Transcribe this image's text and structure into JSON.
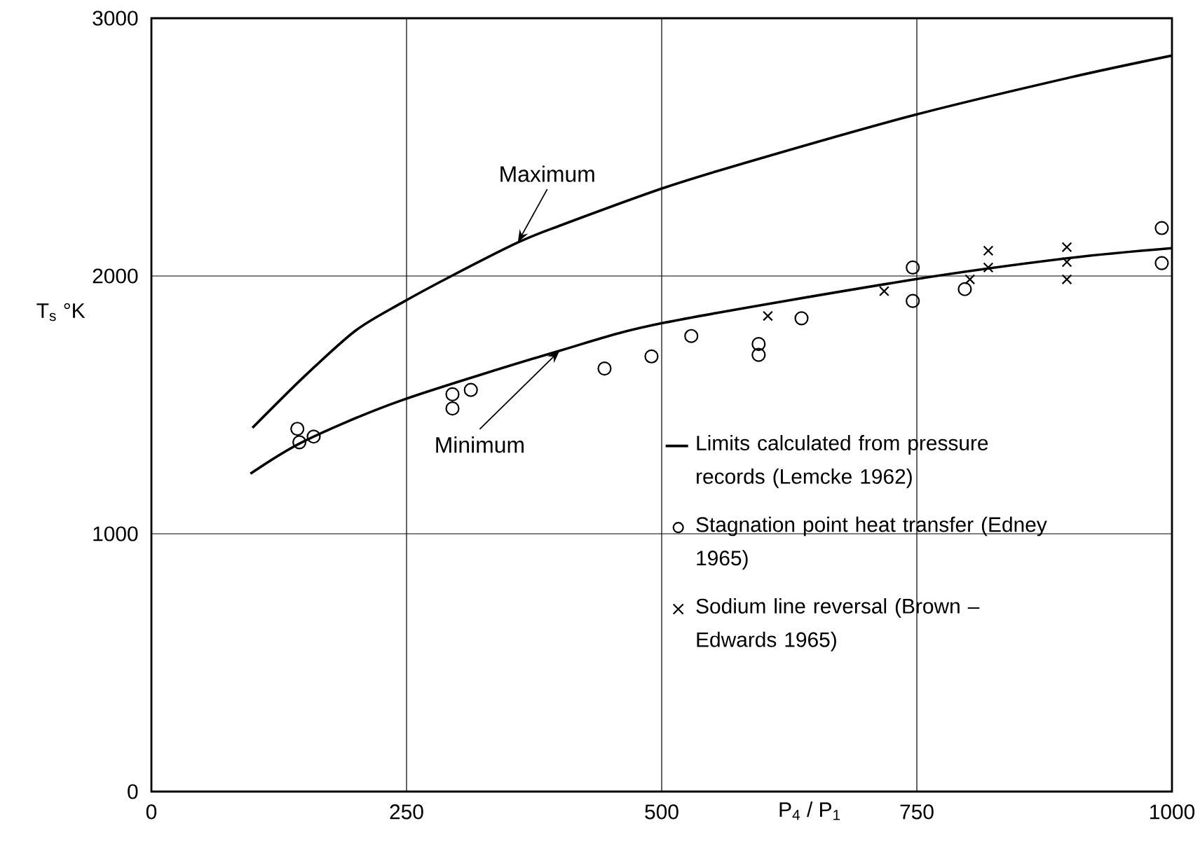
{
  "chart_data": {
    "type": "line",
    "xlabel": "P$_{4}$ / P$_{1}$",
    "ylabel": "T$_{s}$ °K",
    "xlim": [
      0,
      1000
    ],
    "ylim": [
      0,
      3000
    ],
    "xticks": [
      0,
      250,
      500,
      750,
      1000
    ],
    "yticks": [
      0,
      1000,
      2000,
      3000
    ],
    "grid": true,
    "legend": "bottom right",
    "series": [
      {
        "name": "Limits calculated from pressure records (Lemcke 1962)",
        "type": "line",
        "color": "#000000",
        "marker": "none",
        "line_style": "solid",
        "x": [
          99,
          150,
          200,
          244,
          293,
          359,
          400,
          503,
          600,
          748,
          900,
          1000
        ],
        "values": [
          1411,
          1611,
          1788,
          1893,
          1998,
          2130,
          2195,
          2343,
          2460,
          2625,
          2770,
          2855
        ]
      },
      {
        "type": "line",
        "color": "#000000",
        "marker": "none",
        "line_style": "solid",
        "x": [
          97,
          150,
          244,
          400,
          503,
          748,
          900,
          1000
        ],
        "values": [
          1233,
          1360,
          1516,
          1710,
          1819,
          1987,
          2070,
          2108
        ]
      },
      {
        "name": "Stagnation point heat transfer (Edney 1965)",
        "type": "scatter",
        "color": "#000000",
        "marker": "circle",
        "x": [
          143,
          145,
          159,
          295,
          295,
          313,
          444,
          490,
          529,
          595,
          595,
          637,
          746,
          746,
          797,
          990,
          990
        ],
        "values": [
          1407,
          1355,
          1377,
          1541,
          1486,
          1558,
          1641,
          1688,
          1767,
          1736,
          1694,
          1836,
          2033,
          1903,
          1949,
          2186,
          2050
        ]
      },
      {
        "name": "Sodium line reversal (Brown – Edwards 1965)",
        "type": "scatter",
        "color": "#000000",
        "marker": "cross",
        "x": [
          604,
          718,
          802,
          820,
          820,
          897,
          897,
          897
        ],
        "values": [
          1845,
          1941,
          1987,
          2098,
          2033,
          2112,
          2054,
          1987
        ]
      }
    ],
    "annotations": [
      {
        "text": "Maximum",
        "x": 359,
        "y": 2130
      },
      {
        "text": "Minimum",
        "x": 400,
        "y": 1710
      }
    ]
  }
}
